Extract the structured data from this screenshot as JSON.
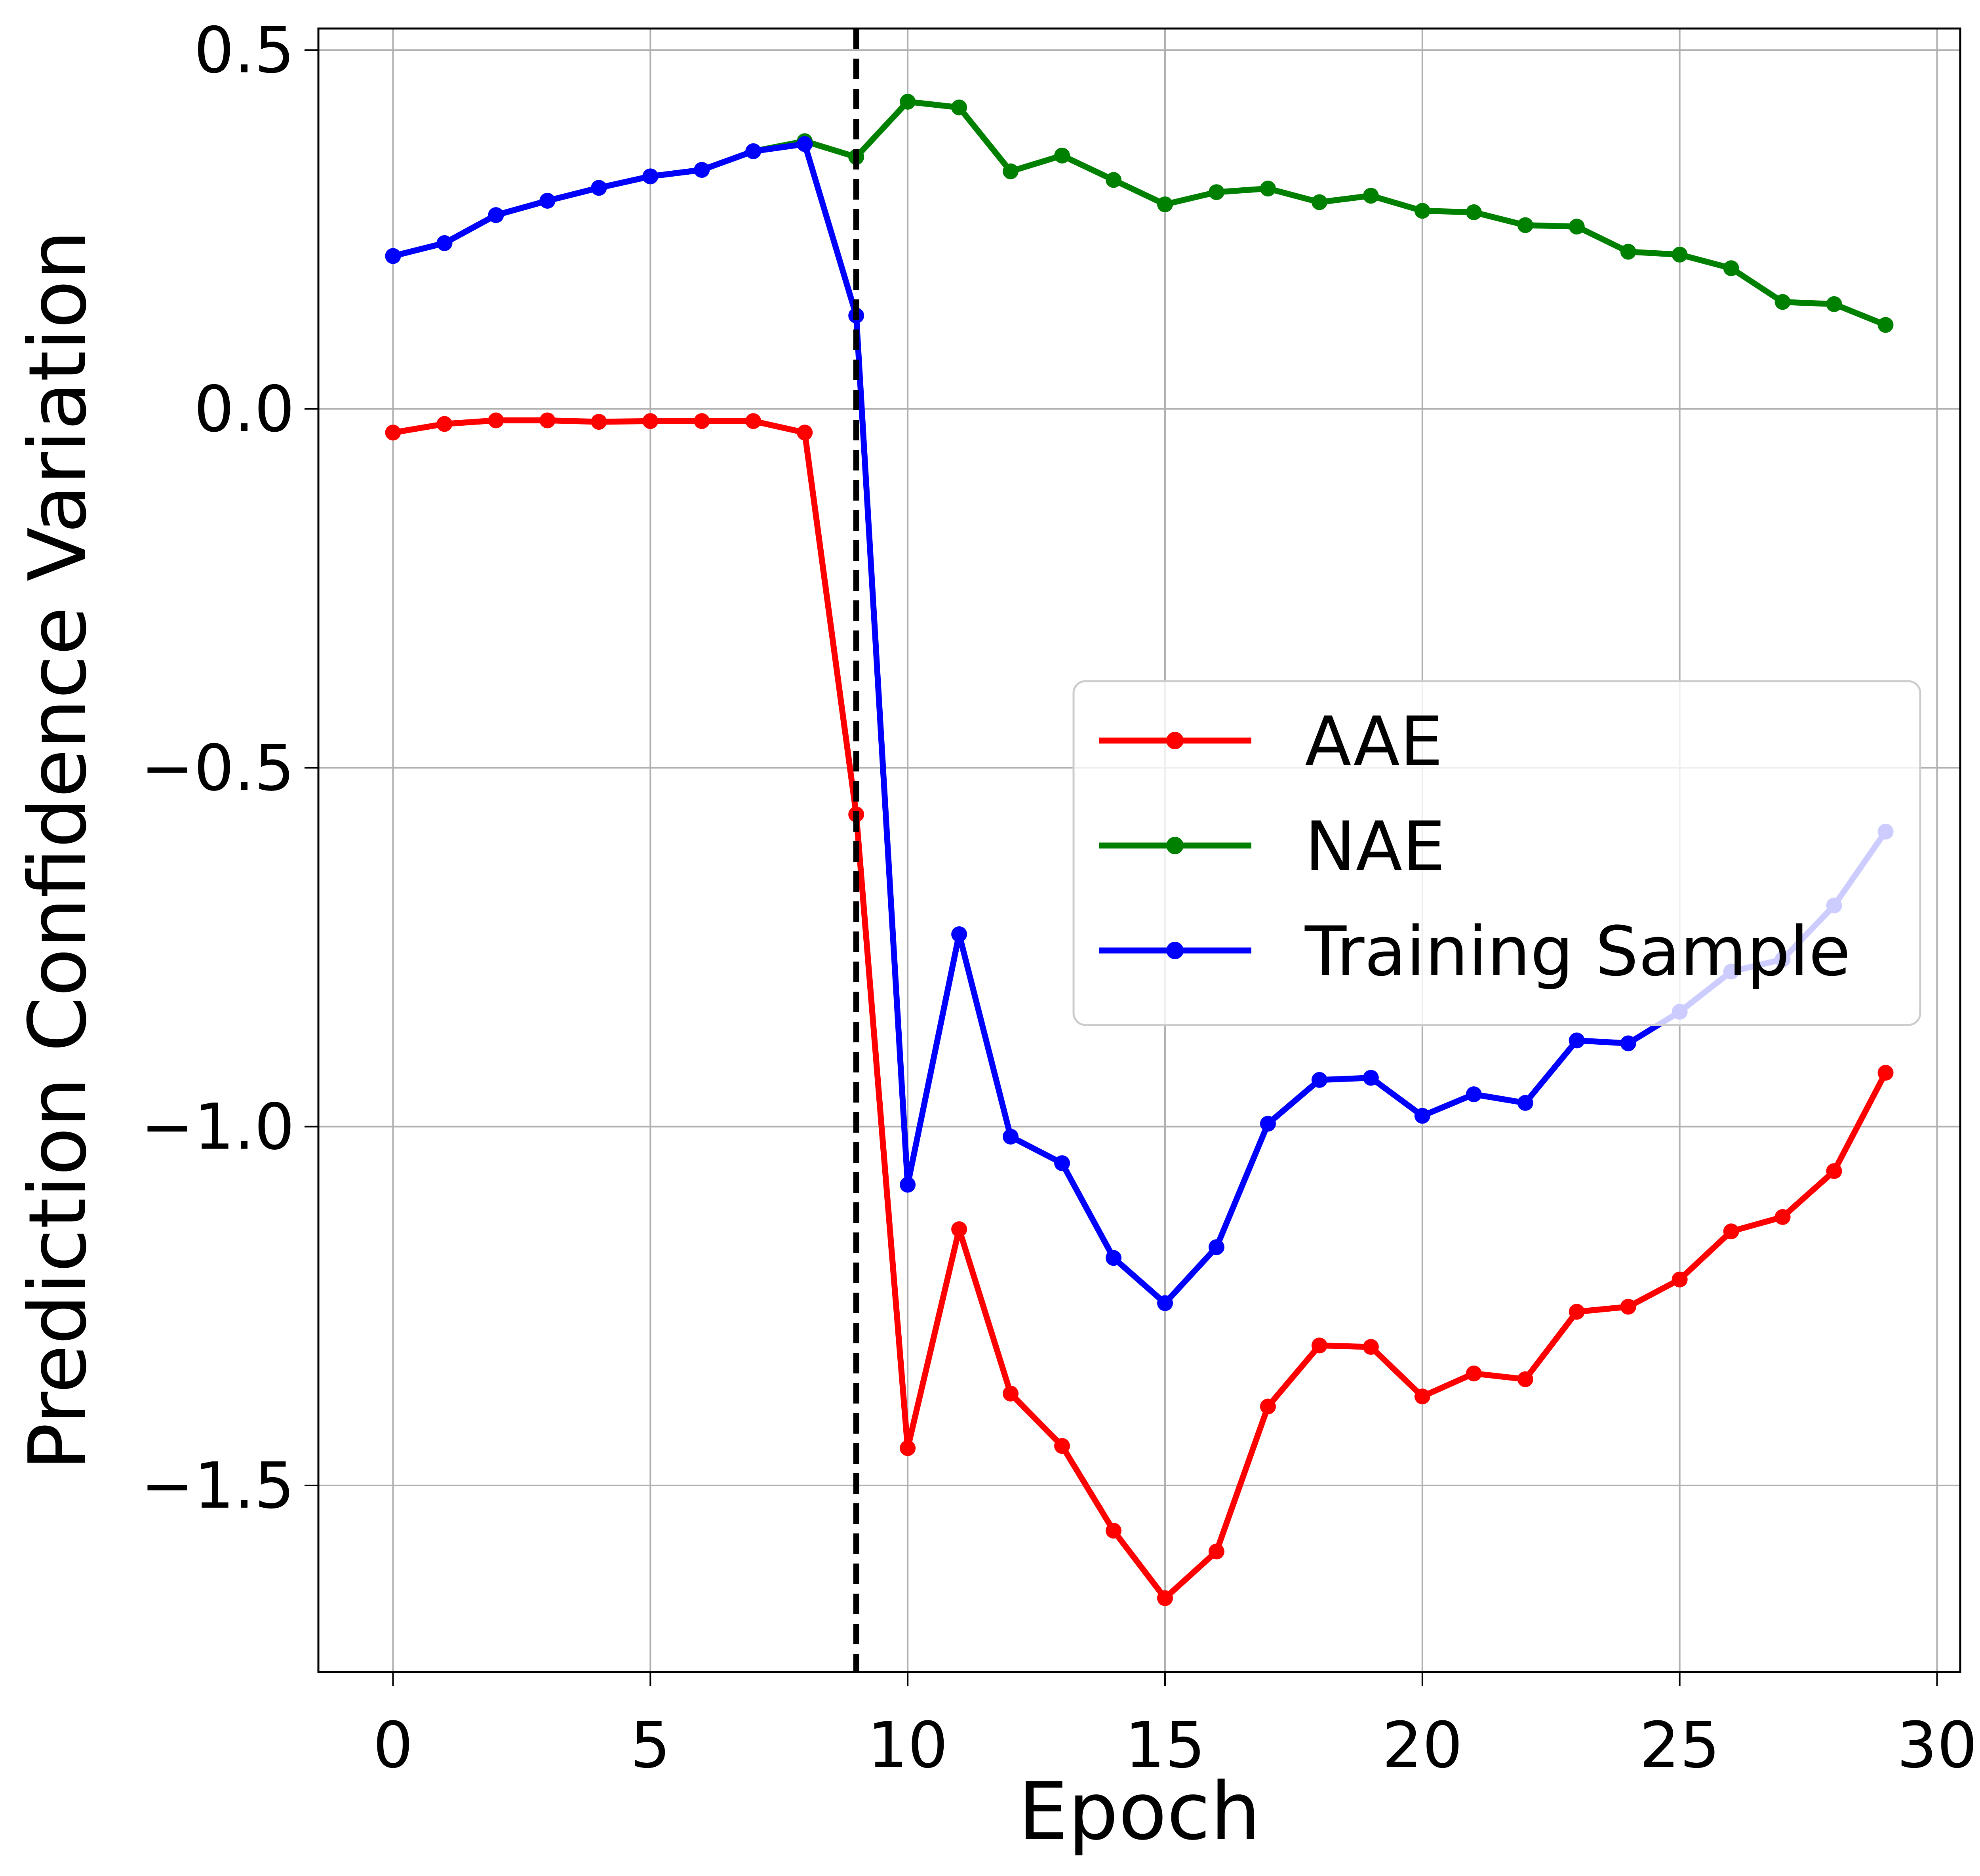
{
  "chart_data": {
    "type": "line",
    "title": "",
    "xlabel": "Epoch",
    "ylabel": "Prediction Confidence Variation",
    "xlim": [
      -1.45,
      30.45
    ],
    "ylim": [
      -1.76,
      0.53
    ],
    "xticks": [
      0,
      5,
      10,
      15,
      20,
      25,
      30
    ],
    "xtick_labels": [
      "0",
      "5",
      "10",
      "15",
      "20",
      "25",
      "30"
    ],
    "yticks": [
      0.5,
      0.0,
      -0.5,
      -1.0,
      -1.5
    ],
    "ytick_labels": [
      "0.5",
      "0.0",
      "−0.5",
      "−1.0",
      "−1.5"
    ],
    "grid": true,
    "legend_position": "center-right",
    "vline": {
      "x": 9,
      "style": "dashed",
      "color": "#000000"
    },
    "x": [
      0,
      1,
      2,
      3,
      4,
      5,
      6,
      7,
      8,
      9,
      10,
      11,
      12,
      13,
      14,
      15,
      16,
      17,
      18,
      19,
      20,
      21,
      22,
      23,
      24,
      25,
      26,
      27,
      28,
      29
    ],
    "series": [
      {
        "name": "AAE",
        "color": "#ff0000",
        "values": [
          -0.033,
          -0.021,
          -0.016,
          -0.016,
          -0.018,
          -0.017,
          -0.017,
          -0.017,
          -0.033,
          -0.565,
          -1.448,
          -1.143,
          -1.372,
          -1.445,
          -1.563,
          -1.657,
          -1.592,
          -1.39,
          -1.305,
          -1.307,
          -1.376,
          -1.344,
          -1.352,
          -1.258,
          -1.251,
          -1.213,
          -1.146,
          -1.126,
          -1.062,
          -0.925
        ]
      },
      {
        "name": "NAE",
        "color": "#008000",
        "values": [
          0.213,
          0.231,
          0.27,
          0.29,
          0.308,
          0.324,
          0.333,
          0.359,
          0.373,
          0.351,
          0.428,
          0.42,
          0.331,
          0.353,
          0.319,
          0.285,
          0.302,
          0.307,
          0.288,
          0.297,
          0.276,
          0.274,
          0.256,
          0.254,
          0.219,
          0.215,
          0.196,
          0.149,
          0.146,
          0.117
        ]
      },
      {
        "name": "Training Sample",
        "color": "#0000ff",
        "values": [
          0.213,
          0.231,
          0.27,
          0.29,
          0.308,
          0.324,
          0.333,
          0.359,
          0.369,
          0.13,
          -1.081,
          -0.732,
          -1.014,
          -1.051,
          -1.183,
          -1.246,
          -1.168,
          -0.996,
          -0.935,
          -0.932,
          -0.985,
          -0.955,
          -0.967,
          -0.88,
          -0.884,
          -0.84,
          -0.784,
          -0.767,
          -0.692,
          -0.589
        ]
      }
    ]
  }
}
